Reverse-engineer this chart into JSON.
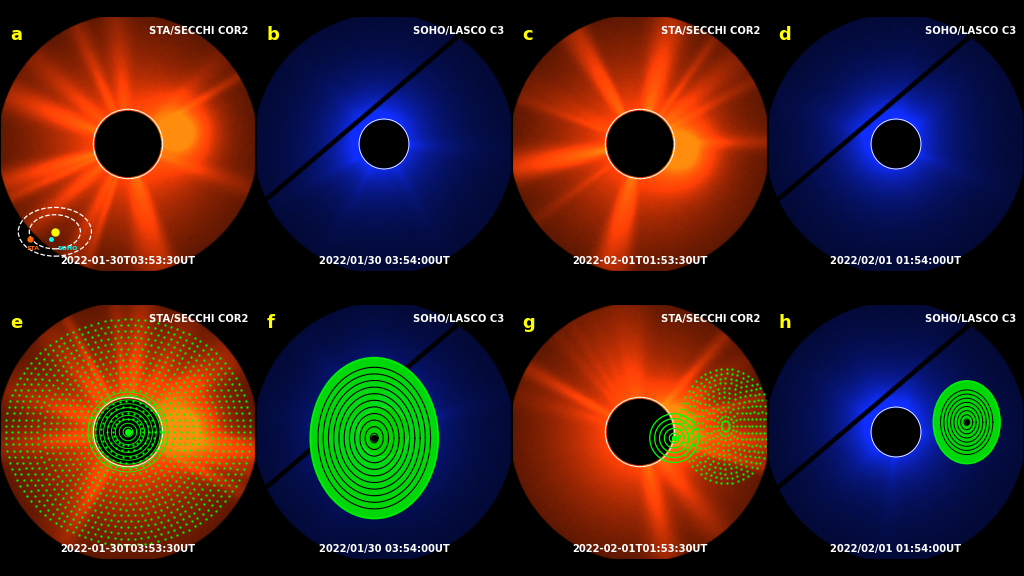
{
  "panels": [
    {
      "label": "a",
      "instrument": "STA/SECCHI COR2",
      "timestamp": "2022-01-30T03:53:30UT",
      "type": "red",
      "row": 0,
      "col": 0,
      "has_orbit": true
    },
    {
      "label": "b",
      "instrument": "SOHO/LASCO C3",
      "timestamp": "2022/01/30 03:54:00UT",
      "type": "blue",
      "row": 0,
      "col": 1
    },
    {
      "label": "c",
      "instrument": "STA/SECCHI COR2",
      "timestamp": "2022-02-01T01:53:30UT",
      "type": "red",
      "row": 0,
      "col": 2
    },
    {
      "label": "d",
      "instrument": "SOHO/LASCO C3",
      "timestamp": "2022/02/01 01:54:00UT",
      "type": "blue",
      "row": 0,
      "col": 3
    },
    {
      "label": "e",
      "instrument": "STA/SECCHI COR2",
      "timestamp": "2022-01-30T03:53:30UT",
      "type": "red",
      "row": 1,
      "col": 0,
      "cme": "e"
    },
    {
      "label": "f",
      "instrument": "SOHO/LASCO C3",
      "timestamp": "2022/01/30 03:54:00UT",
      "type": "blue",
      "row": 1,
      "col": 1,
      "cme": "f"
    },
    {
      "label": "g",
      "instrument": "STA/SECCHI COR2",
      "timestamp": "2022-02-01T01:53:30UT",
      "type": "red",
      "row": 1,
      "col": 2,
      "cme": "g"
    },
    {
      "label": "h",
      "instrument": "SOHO/LASCO C3",
      "timestamp": "2022/02/01 01:54:00UT",
      "type": "blue",
      "row": 1,
      "col": 3,
      "cme": "h"
    }
  ],
  "label_color": "#ffff00",
  "text_color": "#ffffff",
  "green": "#00ff00",
  "bg": "#000000"
}
